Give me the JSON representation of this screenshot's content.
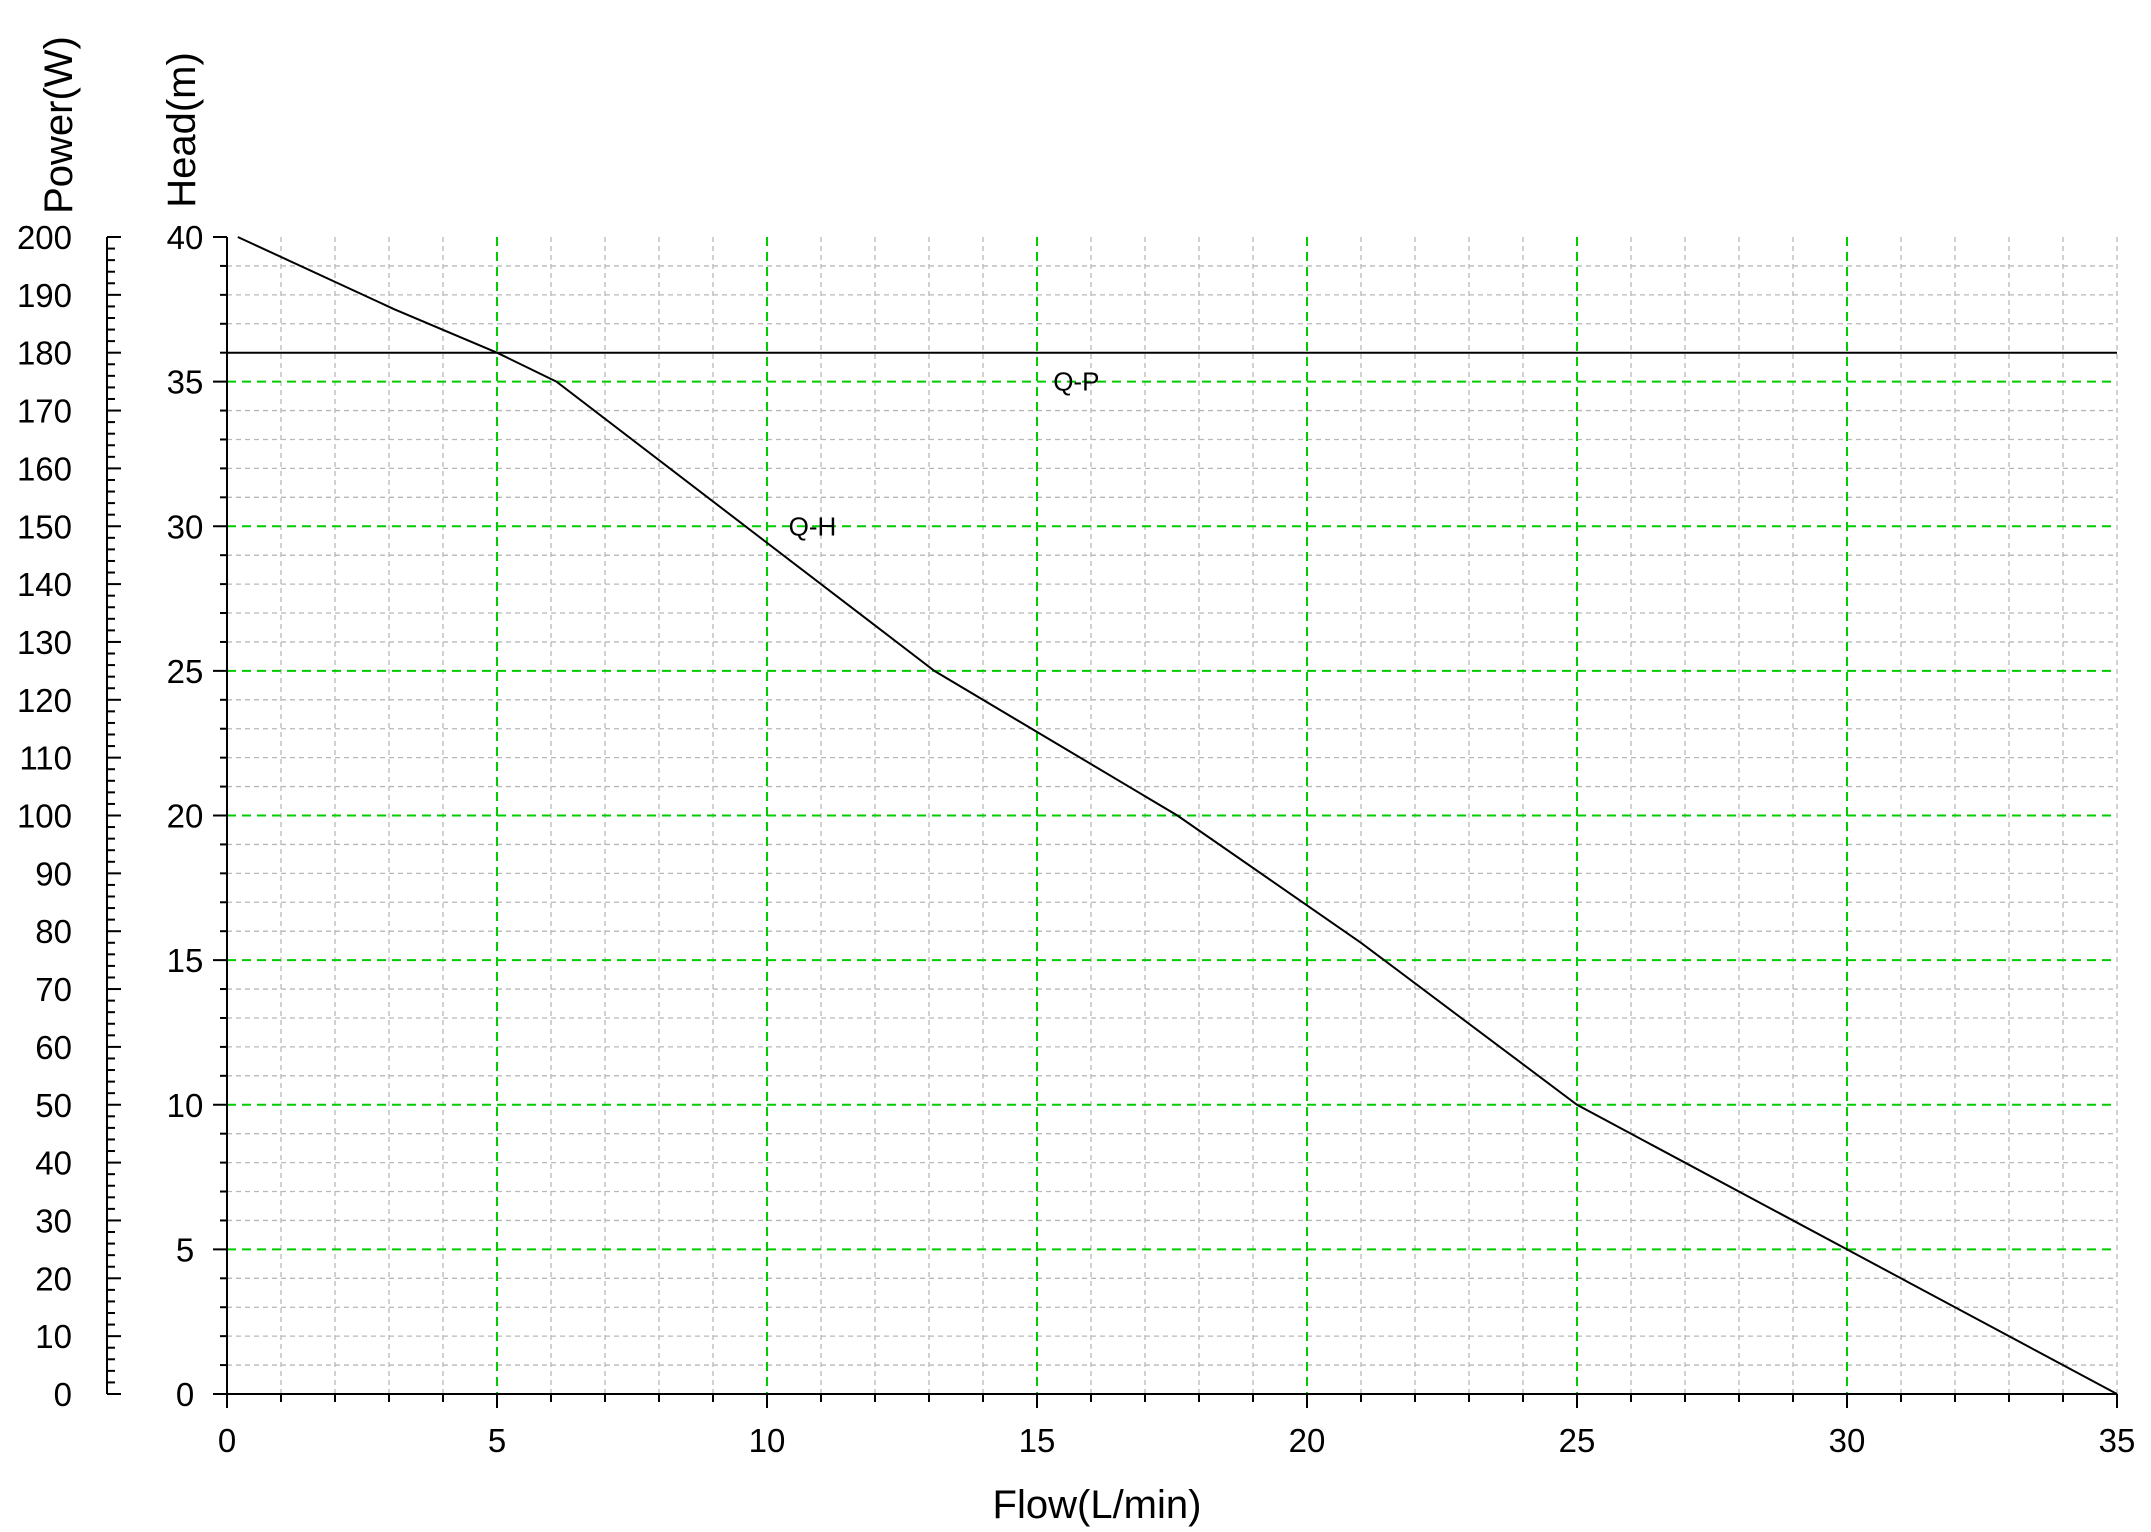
{
  "chart_data": {
    "type": "line",
    "xlabel": "Flow(L/min)",
    "ylabel_left": "Power(W)",
    "ylabel_right": "Head(m)",
    "xlim": [
      0,
      35
    ],
    "head_lim": [
      0,
      40
    ],
    "power_lim": [
      0,
      200
    ],
    "x_ticks": [
      0,
      5,
      10,
      15,
      20,
      25,
      30,
      35
    ],
    "head_ticks": [
      0,
      5,
      10,
      15,
      20,
      25,
      30,
      35,
      40
    ],
    "power_ticks": [
      0,
      10,
      20,
      30,
      40,
      50,
      60,
      70,
      80,
      90,
      100,
      110,
      120,
      130,
      140,
      150,
      160,
      170,
      180,
      190,
      200
    ],
    "grid": true,
    "colors": {
      "major_grid": "#00cc00",
      "minor_grid": "#b8b8b8",
      "curve": "#000000"
    },
    "series": [
      {
        "name": "Q-H",
        "axis": "head",
        "label_at": [
          10.4,
          30
        ],
        "x": [
          0.2,
          3.1,
          5.0,
          6.1,
          13.1,
          17.6,
          21.0,
          25.0,
          30.0,
          35.0
        ],
        "y": [
          40.0,
          37.5,
          36.0,
          35.0,
          25.0,
          20.0,
          15.6,
          10.0,
          5.0,
          0.0
        ]
      },
      {
        "name": "Q-P",
        "axis": "power",
        "label_at": [
          15.3,
          175
        ],
        "x": [
          0,
          35
        ],
        "y": [
          180,
          180
        ]
      }
    ]
  }
}
